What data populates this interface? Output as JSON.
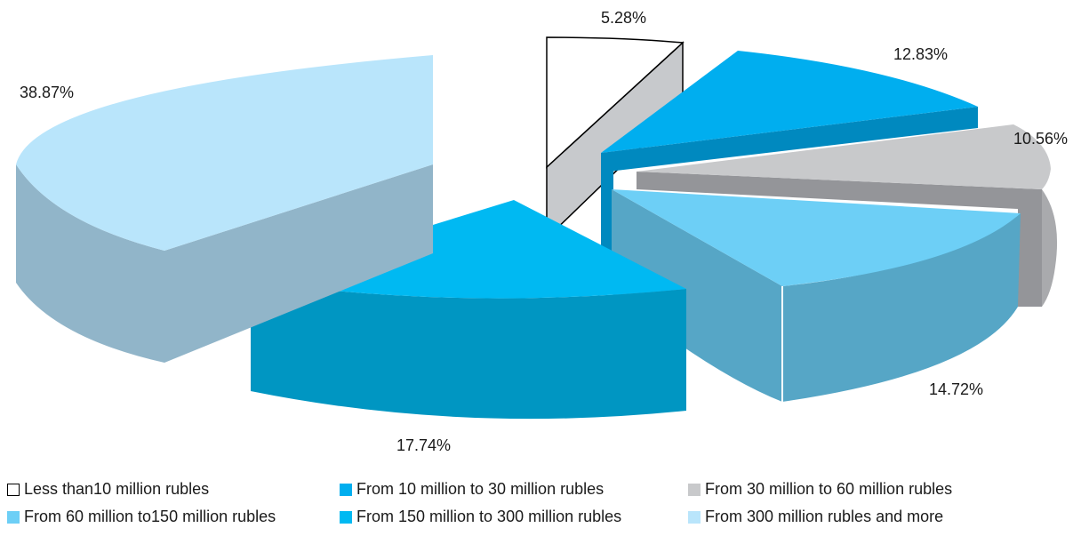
{
  "chart_data": {
    "type": "pie",
    "style": "exploded-3d",
    "slices": [
      {
        "label": "Less than10 million rubles",
        "value": 5.28,
        "value_label": "5.28%",
        "color": "#ffffff",
        "side_color": "#c7c9cc",
        "outline": "#000000"
      },
      {
        "label": "From 10 million to 30 million rubles",
        "value": 12.83,
        "value_label": "12.83%",
        "color": "#00aeef",
        "side_color": "#0089bf"
      },
      {
        "label": "From 30 million to 60 million rubles",
        "value": 10.56,
        "value_label": "10.56%",
        "color": "#c8c9cb",
        "side_color": "#949599"
      },
      {
        "label": "From 60 million to150 million rubles",
        "value": 14.72,
        "value_label": "14.72%",
        "color": "#6dcff6",
        "side_color": "#56a6c6"
      },
      {
        "label": "From 150 million to 300 million rubles",
        "value": 17.74,
        "value_label": "17.74%",
        "color": "#00b9f2",
        "side_color": "#0096c2"
      },
      {
        "label": "From 300 million rubles and more",
        "value": 38.87,
        "value_label": "38.87%",
        "color": "#b9e5fb",
        "side_color": "#91b5c9"
      }
    ],
    "legend": {
      "position": "bottom",
      "columns": 3
    }
  }
}
